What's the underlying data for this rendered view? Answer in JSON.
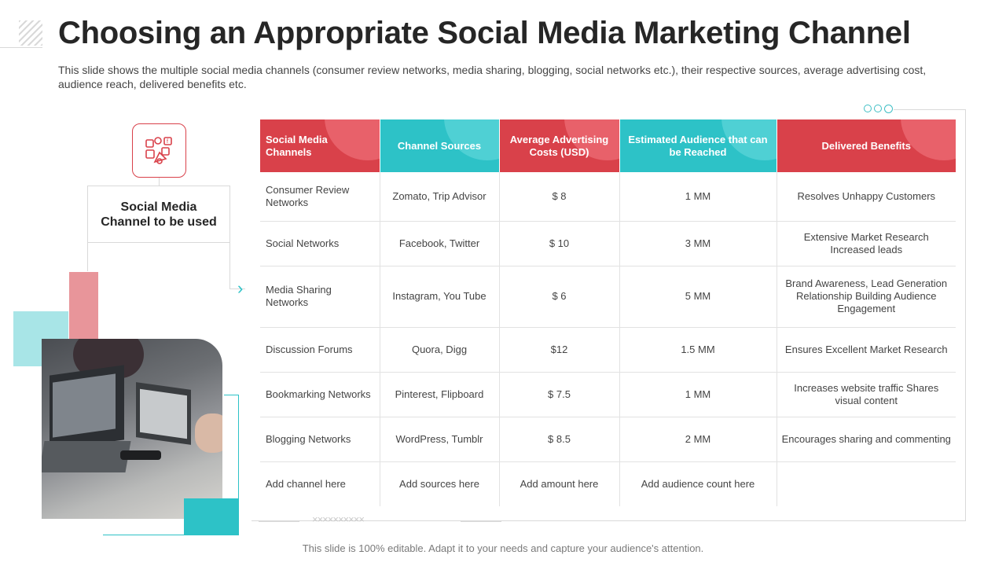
{
  "title": "Choosing an Appropriate Social Media Marketing Channel",
  "subtitle": "This slide shows the multiple social media channels (consumer review networks, media sharing, blogging, social networks etc.), their respective sources, average advertising cost, audience reach, delivered benefits etc.",
  "left_panel": {
    "label": "Social Media Channel to be used",
    "icon": "social-media-apps-icon",
    "chevron": "›"
  },
  "table": {
    "headers": [
      "Social Media Channels",
      "Channel Sources",
      "Average Advertising Costs (USD)",
      "Estimated Audience that can be Reached",
      "Delivered Benefits"
    ],
    "rows": [
      [
        "Consumer Review Networks",
        "Zomato, Trip Advisor",
        "$ 8",
        "1 MM",
        "Resolves Unhappy Customers"
      ],
      [
        "Social Networks",
        "Facebook, Twitter",
        "$ 10",
        "3 MM",
        "Extensive Market Research Increased leads"
      ],
      [
        "Media Sharing Networks",
        "Instagram, You Tube",
        "$ 6",
        "5 MM",
        "Brand Awareness, Lead Generation Relationship Building Audience Engagement"
      ],
      [
        "Discussion Forums",
        "Quora, Digg",
        "$12",
        "1.5 MM",
        "Ensures Excellent Market Research"
      ],
      [
        "Bookmarking Networks",
        "Pinterest, Flipboard",
        "$ 7.5",
        "1 MM",
        "Increases website traffic Shares visual content"
      ],
      [
        "Blogging Networks",
        "WordPress, Tumblr",
        "$ 8.5",
        "2 MM",
        "Encourages sharing and commenting"
      ],
      [
        "Add channel here",
        "Add sources here",
        "Add amount here",
        "Add audience count here",
        ""
      ]
    ]
  },
  "decor": {
    "x_pattern": "××××××××××"
  },
  "footer": "This slide is 100% editable. Adapt it to your needs and capture your audience's attention.",
  "colors": {
    "red": "#d9414a",
    "teal": "#2dc2c7",
    "pink": "#e8959a",
    "light_teal": "#a8e5e7"
  }
}
